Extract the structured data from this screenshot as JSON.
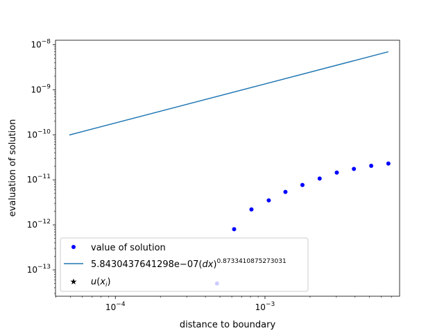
{
  "chart_data": {
    "type": "scatter",
    "title": "",
    "xlabel": "distance to boundary",
    "ylabel": "evaluation of solution",
    "x_scale": "log",
    "y_scale": "log",
    "xlim": [
      3.98e-05,
      0.00794
    ],
    "ylim": [
      2.6e-14,
      1.26e-08
    ],
    "grid": false,
    "legend_position": "lower-left",
    "x_major_ticks": [
      {
        "value": 0.0001,
        "base": "10",
        "exp": "−4"
      },
      {
        "value": 0.001,
        "base": "10",
        "exp": "−3"
      }
    ],
    "y_major_ticks": [
      {
        "value": 1e-13,
        "base": "10",
        "exp": "−13"
      },
      {
        "value": 1e-12,
        "base": "10",
        "exp": "−12"
      },
      {
        "value": 1e-11,
        "base": "10",
        "exp": "−11"
      },
      {
        "value": 1e-10,
        "base": "10",
        "exp": "−10"
      },
      {
        "value": 1e-09,
        "base": "10",
        "exp": "−9"
      },
      {
        "value": 1e-08,
        "base": "10",
        "exp": "−8"
      }
    ],
    "series": [
      {
        "name": "value of solution",
        "kind": "points",
        "color": "#0000ff",
        "x": [
          0.000478,
          0.000622,
          0.000812,
          0.00106,
          0.00137,
          0.00178,
          0.00232,
          0.00302,
          0.00393,
          0.00513,
          0.00668
        ],
        "y": [
          5e-14,
          8e-13,
          2.2e-12,
          3.5e-12,
          5.4e-12,
          7.7e-12,
          1.07e-11,
          1.45e-11,
          1.75e-11,
          2.05e-11,
          2.3e-11
        ]
      },
      {
        "name_prefix": "5.8430437641298e−07(",
        "name_var": "dx",
        "name_suffix": ")",
        "name_exponent": "0.8733410875273031",
        "kind": "line",
        "color": "#1f77b4",
        "coefficient": 5.8430437641298e-07,
        "exponent": 0.8733410875273031,
        "x": [
          4.92e-05,
          0.00668
        ],
        "y": [
          9.9e-11,
          7e-09
        ]
      },
      {
        "name_func": "u",
        "name_arg": "x",
        "name_sub": "i",
        "kind": "star",
        "color": "#ff0000",
        "x": [],
        "y": []
      }
    ]
  }
}
